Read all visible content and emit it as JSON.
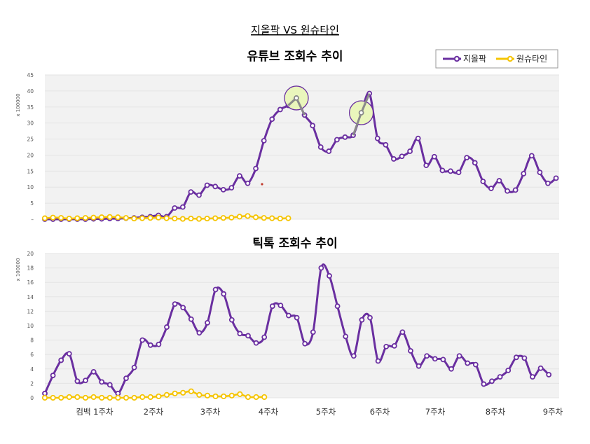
{
  "header": {
    "main_title": "지올팍 VS 원슈타인"
  },
  "colors": {
    "series_a": "#6a2fa0",
    "series_b": "#f5c400",
    "grid": "#e4e4e4",
    "panel_bg": "#f2f2f2",
    "highlight_fill": "#e9f5b8"
  },
  "x_axis": {
    "tick_labels": [
      "컴백 1주차",
      "2주차",
      "3주차",
      "4주차",
      "5주차",
      "6주차",
      "7주차",
      "8주차",
      "9주차"
    ]
  },
  "chart_data": [
    {
      "type": "line",
      "title": "유튜브 조회수 추이",
      "ylabel": "x 100000",
      "ylim": [
        0,
        45
      ],
      "y_ticks": [
        "–",
        "5",
        "10",
        "15",
        "20",
        "25",
        "30",
        "35",
        "40",
        "45"
      ],
      "legend": "top-right",
      "grid": true,
      "highlighted_points": [
        31,
        39
      ],
      "series": [
        {
          "name": "지올팍",
          "color": "#6a2fa0",
          "values": [
            0,
            0,
            0,
            0,
            0,
            0,
            0.1,
            0.1,
            0.2,
            0.2,
            0.3,
            0.4,
            0.6,
            0.8,
            1.2,
            0.8,
            3.5,
            3.8,
            8.5,
            7.5,
            10.6,
            10.2,
            9.2,
            9.8,
            13.5,
            11.2,
            15.8,
            24.5,
            31.2,
            34.2,
            35.5,
            37.8,
            32.5,
            29.2,
            22.5,
            21.2,
            24.8,
            25.6,
            26.2,
            33.2,
            39.2,
            25.2,
            23.2,
            18.8,
            19.6,
            21.2,
            25.2,
            16.8,
            19.5,
            15.2,
            15.0,
            14.6,
            19.2,
            17.6,
            11.8,
            9.6,
            12.0,
            8.8,
            9.1,
            14.2,
            19.8,
            14.6,
            11.2,
            12.8
          ]
        },
        {
          "name": "원슈타인",
          "color": "#f5c400",
          "values": [
            0.3,
            0.5,
            0.4,
            0.2,
            0.3,
            0.4,
            0.5,
            0.6,
            0.7,
            0.6,
            0.4,
            0.2,
            0.3,
            0.4,
            0.5,
            0.3,
            0.2,
            0.1,
            0.2,
            0.1,
            0.2,
            0.3,
            0.4,
            0.5,
            0.8,
            1.0,
            0.6,
            0.4,
            0.3,
            0.2,
            0.3
          ]
        }
      ]
    },
    {
      "type": "line",
      "title": "틱톡 조회수 추이",
      "ylabel": "x 100000",
      "ylim": [
        0,
        20
      ],
      "y_ticks": [
        "0",
        "2",
        "4",
        "6",
        "8",
        "10",
        "12",
        "14",
        "16",
        "18",
        "20"
      ],
      "grid": true,
      "series": [
        {
          "name": "지올팍",
          "color": "#6a2fa0",
          "values": [
            0.6,
            3.1,
            5.2,
            6.1,
            2.3,
            2.4,
            3.6,
            2.2,
            1.8,
            0.6,
            2.7,
            4.2,
            8.0,
            7.3,
            7.4,
            9.8,
            13.0,
            12.5,
            10.9,
            9.0,
            10.4,
            15.0,
            14.4,
            10.8,
            8.9,
            8.6,
            7.6,
            8.4,
            12.7,
            12.8,
            11.4,
            11.1,
            7.5,
            9.1,
            18.0,
            16.9,
            12.7,
            8.5,
            5.8,
            10.8,
            11.1,
            5.1,
            7.1,
            7.2,
            9.1,
            6.5,
            4.4,
            5.8,
            5.4,
            5.3,
            4.0,
            5.8,
            4.8,
            4.6,
            1.9,
            2.3,
            2.9,
            3.8,
            5.6,
            5.5,
            2.9,
            4.1,
            3.2
          ]
        },
        {
          "name": "원슈타인",
          "color": "#f5c400",
          "values": [
            0,
            0,
            0,
            0.1,
            0.1,
            0,
            0.1,
            0,
            0,
            0,
            0,
            0,
            0.1,
            0.1,
            0.2,
            0.4,
            0.6,
            0.7,
            0.9,
            0.4,
            0.3,
            0.2,
            0.2,
            0.3,
            0.5,
            0.1,
            0.1,
            0.1
          ]
        }
      ]
    }
  ]
}
